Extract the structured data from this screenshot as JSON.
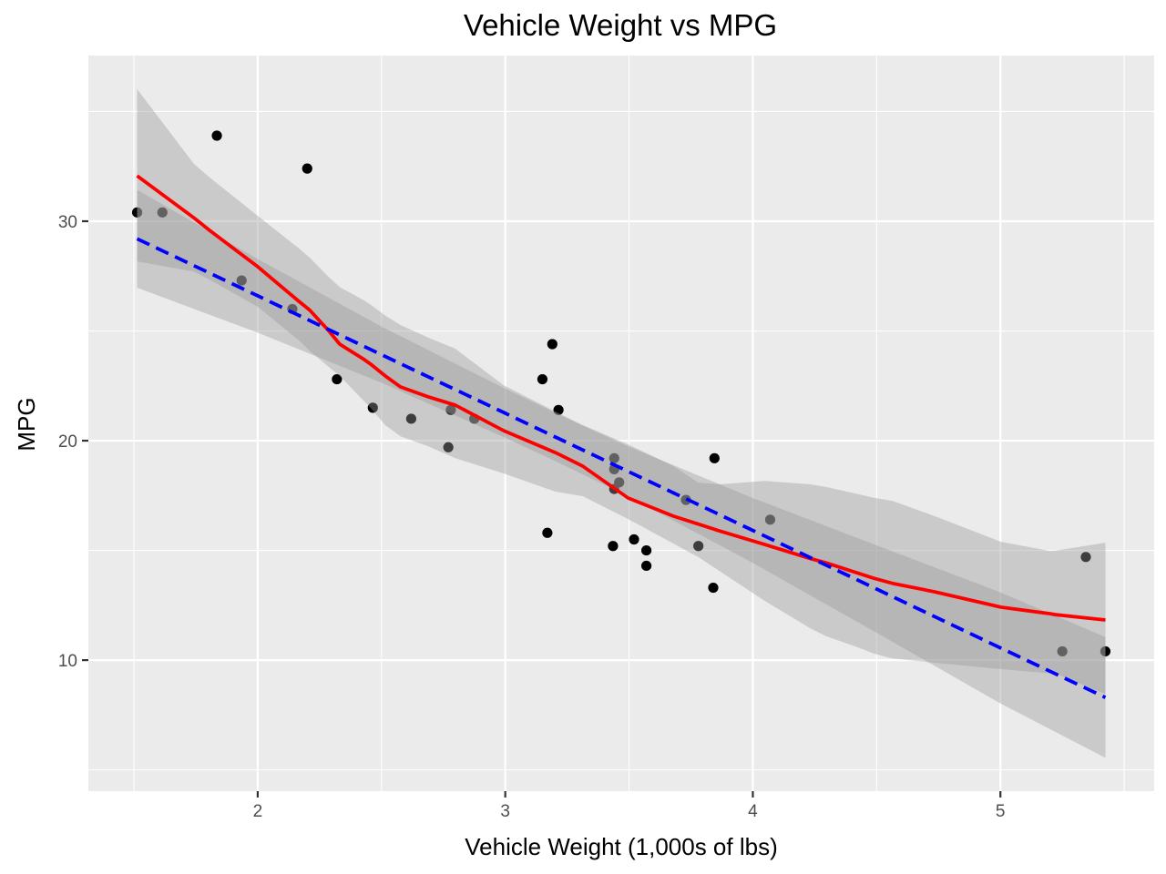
{
  "chart_data": {
    "type": "scatter",
    "title": "Vehicle Weight vs MPG",
    "xlabel": "Vehicle Weight (1,000s of lbs)",
    "ylabel": "MPG",
    "xlim": [
      1.316,
      5.621
    ],
    "ylim": [
      4.03,
      37.55
    ],
    "x_ticks": [
      2,
      3,
      4,
      5
    ],
    "x_tick_labels": [
      "2",
      "3",
      "4",
      "5"
    ],
    "x_minor_ticks": [
      1.5,
      2.5,
      3.5,
      4.5,
      5.5
    ],
    "y_ticks": [
      10,
      20,
      30
    ],
    "y_tick_labels": [
      "10",
      "20",
      "30"
    ],
    "y_minor_ticks": [
      5,
      15,
      25,
      35
    ],
    "grid": true,
    "legend": "none",
    "colors": {
      "panel_background": "#EBEBEB",
      "grid": "#FFFFFF",
      "points": "#000000",
      "ribbon": "#999999",
      "loess_line": "#FF0000",
      "lm_line": "#0000FF"
    },
    "points": {
      "x": [
        2.62,
        2.875,
        2.32,
        3.215,
        3.44,
        3.46,
        3.57,
        3.19,
        3.15,
        3.44,
        3.44,
        4.07,
        3.73,
        3.78,
        5.25,
        5.424,
        5.345,
        2.2,
        1.615,
        1.835,
        2.465,
        3.52,
        3.435,
        3.84,
        3.845,
        1.935,
        2.14,
        1.513,
        3.17,
        2.77,
        3.57,
        2.78
      ],
      "y": [
        21.0,
        21.0,
        22.8,
        21.4,
        18.7,
        18.1,
        14.3,
        24.4,
        22.8,
        19.2,
        17.8,
        16.4,
        17.3,
        15.2,
        10.4,
        10.4,
        14.7,
        32.4,
        30.4,
        33.9,
        21.5,
        15.5,
        15.2,
        13.3,
        19.2,
        27.3,
        26.0,
        30.4,
        15.8,
        19.7,
        15.0,
        21.4
      ]
    },
    "series": [
      {
        "name": "loess",
        "style": "solid",
        "x": [
          1.513,
          1.743,
          1.805,
          2.0,
          2.162,
          2.21,
          2.283,
          2.331,
          2.43,
          2.456,
          2.515,
          2.577,
          2.688,
          2.798,
          2.993,
          3.202,
          3.313,
          3.496,
          3.68,
          3.779,
          3.864,
          4.048,
          4.232,
          4.294,
          4.415,
          4.489,
          4.563,
          4.735,
          5.004,
          5.199,
          5.224,
          5.424
        ],
        "y": [
          32.07,
          30.15,
          29.59,
          27.93,
          26.39,
          25.95,
          25.06,
          24.4,
          23.7,
          23.49,
          22.95,
          22.45,
          22.0,
          21.62,
          20.46,
          19.46,
          18.84,
          17.39,
          16.56,
          16.2,
          15.89,
          15.27,
          14.63,
          14.44,
          14.0,
          13.73,
          13.5,
          13.11,
          12.41,
          12.12,
          12.07,
          11.83
        ],
        "ymin": [
          28.17,
          27.7,
          27.34,
          26.1,
          24.61,
          24.1,
          23.4,
          22.95,
          21.8,
          21.5,
          20.71,
          20.2,
          19.75,
          19.2,
          18.51,
          17.68,
          17.47,
          16.43,
          15.31,
          14.7,
          14.07,
          12.7,
          11.45,
          11.1,
          10.62,
          10.3,
          10.08,
          9.88,
          9.59,
          9.4,
          9.38,
          8.46
        ],
        "ymax": [
          36.02,
          32.61,
          32.0,
          30.25,
          28.8,
          28.34,
          27.5,
          27.0,
          26.39,
          26.2,
          25.7,
          25.27,
          24.7,
          24.19,
          22.53,
          21.33,
          20.71,
          19.83,
          18.84,
          18.09,
          18.01,
          18.17,
          18.01,
          17.9,
          17.59,
          17.4,
          17.26,
          16.56,
          15.39,
          14.98,
          14.99,
          15.35
        ]
      },
      {
        "name": "lm",
        "style": "dashed",
        "x": [
          1.513,
          2.0,
          2.5,
          3.0,
          3.217,
          3.5,
          4.0,
          4.5,
          5.0,
          5.424
        ],
        "y": [
          29.2,
          26.6,
          23.92,
          21.25,
          20.09,
          18.58,
          15.91,
          13.24,
          10.56,
          8.3
        ],
        "ymin": [
          26.97,
          24.92,
          22.64,
          20.13,
          18.99,
          17.44,
          14.43,
          11.25,
          8.03,
          5.55
        ],
        "ymax": [
          31.43,
          28.28,
          25.2,
          22.37,
          21.19,
          19.72,
          17.39,
          15.23,
          13.09,
          11.05
        ]
      }
    ]
  }
}
